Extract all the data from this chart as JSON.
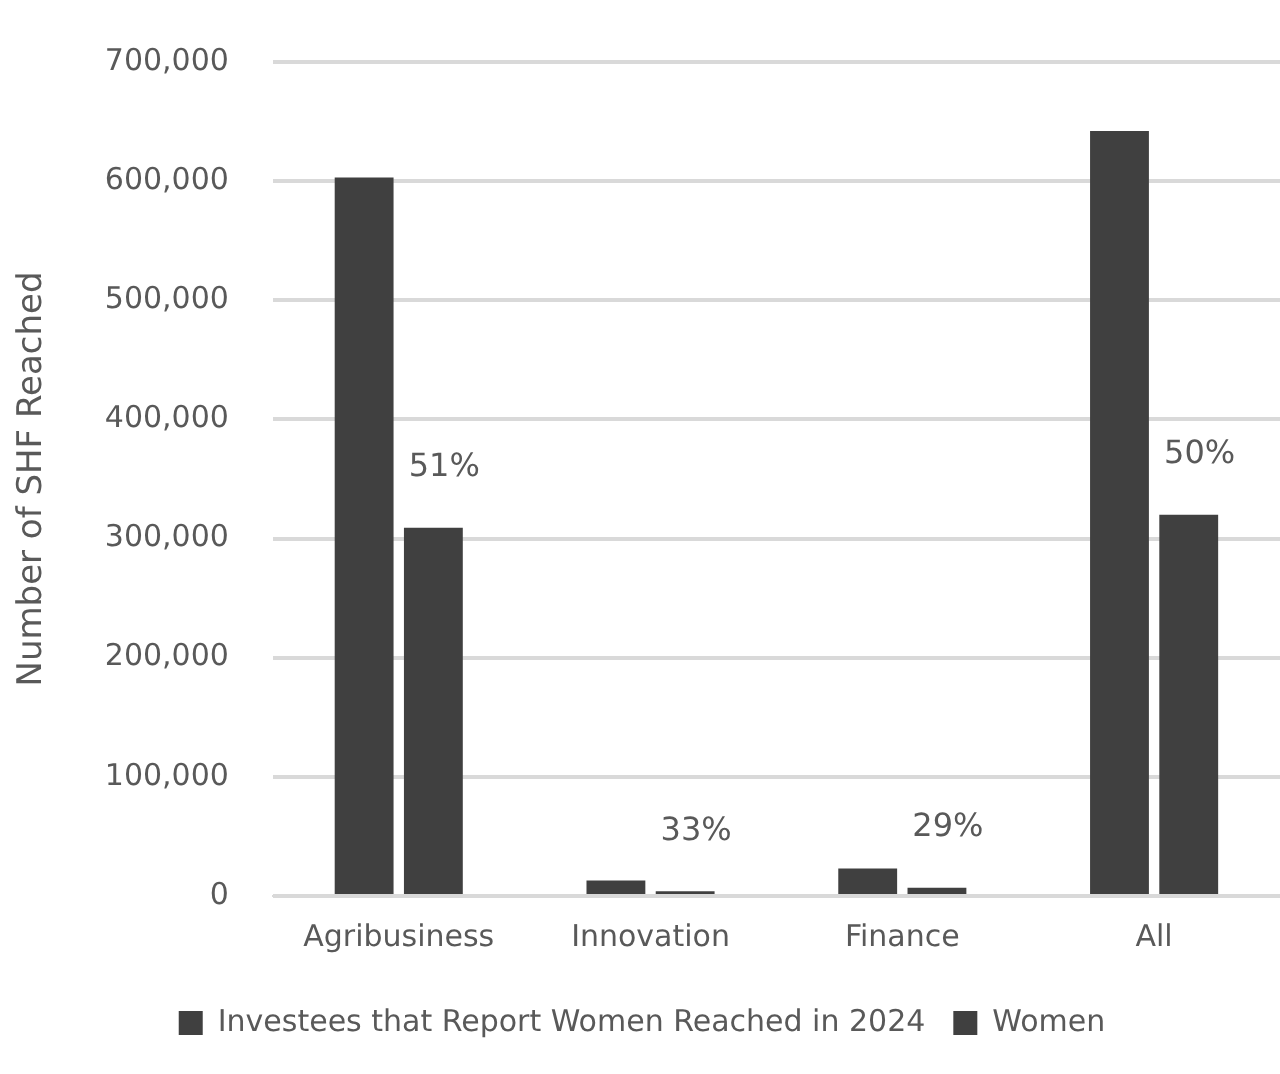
{
  "chart_data": {
    "type": "bar",
    "ylabel": "Number of SHF Reached",
    "categories": [
      "Agribusiness",
      "Innovation",
      "Finance",
      "All"
    ],
    "series": [
      {
        "name": "Investees that Report Women Reached in 2024",
        "color": "#404040",
        "values": [
          603000,
          13000,
          23000,
          642000
        ]
      },
      {
        "name": "Women",
        "color": "#404040",
        "values": [
          309000,
          4000,
          7000,
          320000
        ]
      }
    ],
    "annotations": [
      {
        "text": "51%",
        "x": "Agribusiness",
        "y": 309000
      },
      {
        "text": "33%",
        "x": "Innovation",
        "y": 4000
      },
      {
        "text": "29%",
        "x": "Finance",
        "y": 7000
      },
      {
        "text": "50%",
        "x": "All",
        "y": 320000
      }
    ],
    "ylim": [
      0,
      700000
    ],
    "yticks": [
      0,
      {
        "value": 100000,
        "label": "100,000"
      },
      {
        "value": 200000,
        "label": "200,000"
      },
      {
        "value": 300000,
        "label": "300,000"
      },
      {
        "value": 400000,
        "label": "400,000"
      },
      {
        "value": 500000,
        "label": "500,000"
      },
      {
        "value": 600000,
        "label": "600,000"
      },
      {
        "value": 700000,
        "label": "700,000"
      }
    ],
    "grid": "y",
    "legend": "bottom"
  }
}
